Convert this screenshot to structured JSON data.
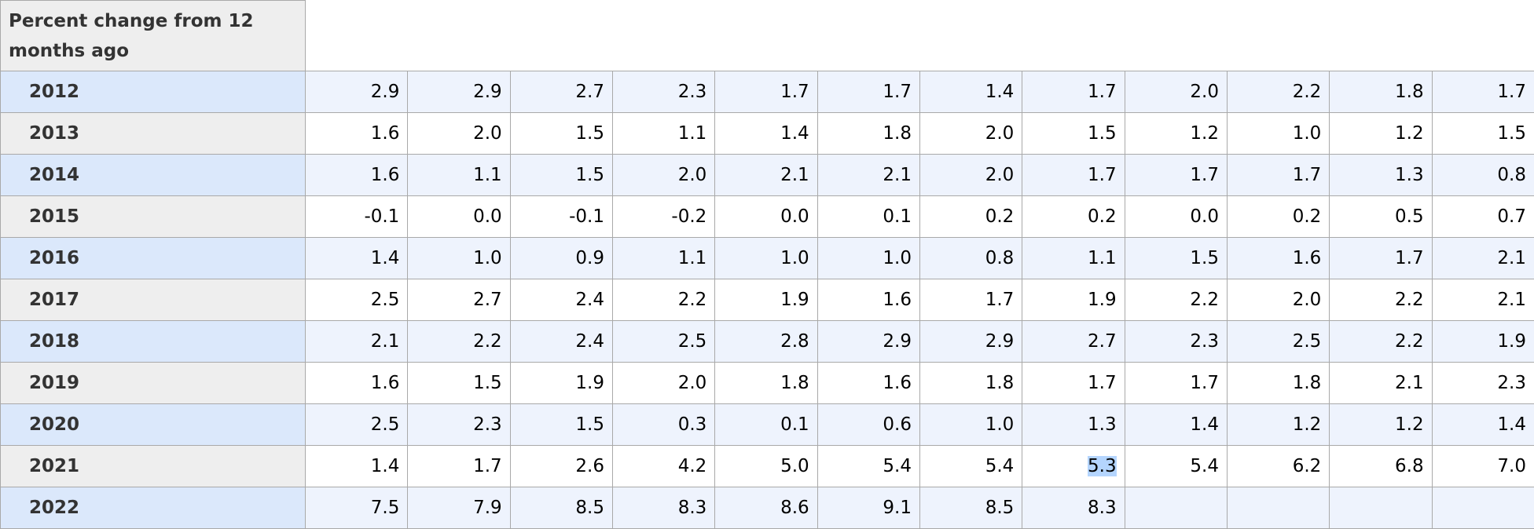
{
  "header": {
    "title": "Percent change from 12 months ago"
  },
  "table": {
    "rows": [
      {
        "year": "2012",
        "values": [
          "2.9",
          "2.9",
          "2.7",
          "2.3",
          "1.7",
          "1.7",
          "1.4",
          "1.7",
          "2.0",
          "2.2",
          "1.8",
          "1.7"
        ]
      },
      {
        "year": "2013",
        "values": [
          "1.6",
          "2.0",
          "1.5",
          "1.1",
          "1.4",
          "1.8",
          "2.0",
          "1.5",
          "1.2",
          "1.0",
          "1.2",
          "1.5"
        ]
      },
      {
        "year": "2014",
        "values": [
          "1.6",
          "1.1",
          "1.5",
          "2.0",
          "2.1",
          "2.1",
          "2.0",
          "1.7",
          "1.7",
          "1.7",
          "1.3",
          "0.8"
        ]
      },
      {
        "year": "2015",
        "values": [
          "-0.1",
          "0.0",
          "-0.1",
          "-0.2",
          "0.0",
          "0.1",
          "0.2",
          "0.2",
          "0.0",
          "0.2",
          "0.5",
          "0.7"
        ]
      },
      {
        "year": "2016",
        "values": [
          "1.4",
          "1.0",
          "0.9",
          "1.1",
          "1.0",
          "1.0",
          "0.8",
          "1.1",
          "1.5",
          "1.6",
          "1.7",
          "2.1"
        ]
      },
      {
        "year": "2017",
        "values": [
          "2.5",
          "2.7",
          "2.4",
          "2.2",
          "1.9",
          "1.6",
          "1.7",
          "1.9",
          "2.2",
          "2.0",
          "2.2",
          "2.1"
        ]
      },
      {
        "year": "2018",
        "values": [
          "2.1",
          "2.2",
          "2.4",
          "2.5",
          "2.8",
          "2.9",
          "2.9",
          "2.7",
          "2.3",
          "2.5",
          "2.2",
          "1.9"
        ]
      },
      {
        "year": "2019",
        "values": [
          "1.6",
          "1.5",
          "1.9",
          "2.0",
          "1.8",
          "1.6",
          "1.8",
          "1.7",
          "1.7",
          "1.8",
          "2.1",
          "2.3"
        ]
      },
      {
        "year": "2020",
        "values": [
          "2.5",
          "2.3",
          "1.5",
          "0.3",
          "0.1",
          "0.6",
          "1.0",
          "1.3",
          "1.4",
          "1.2",
          "1.2",
          "1.4"
        ]
      },
      {
        "year": "2021",
        "values": [
          "1.4",
          "1.7",
          "2.6",
          "4.2",
          "5.0",
          "5.4",
          "5.4",
          "5.3",
          "5.4",
          "6.2",
          "6.8",
          "7.0"
        ]
      },
      {
        "year": "2022",
        "values": [
          "7.5",
          "7.9",
          "8.5",
          "8.3",
          "8.6",
          "9.1",
          "8.5",
          "8.3"
        ]
      }
    ]
  }
}
